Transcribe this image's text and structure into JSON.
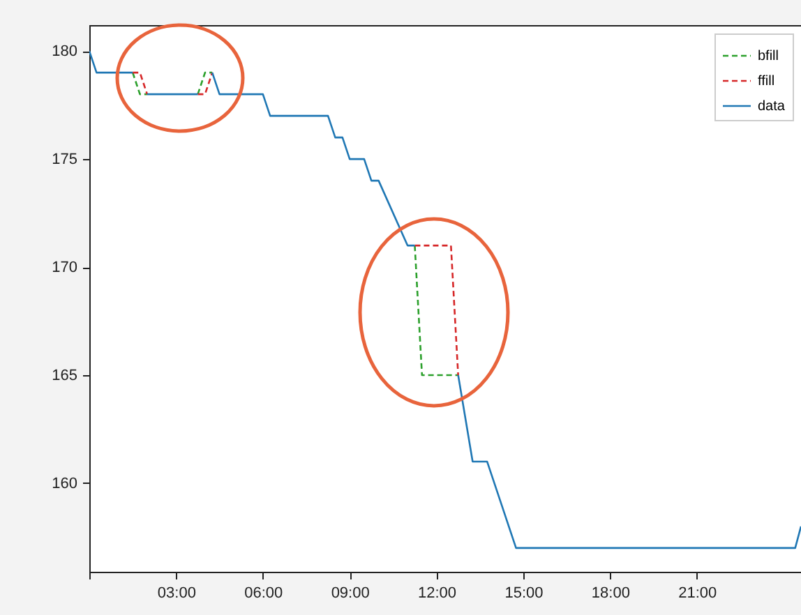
{
  "chart_data": {
    "type": "line",
    "xlim": [
      0,
      24.6
    ],
    "ylim": [
      155.9,
      181.2
    ],
    "xticks": [
      {
        "value": 0,
        "label": null
      },
      {
        "value": 3,
        "label": "03:00"
      },
      {
        "value": 6,
        "label": "06:00"
      },
      {
        "value": 9,
        "label": "09:00"
      },
      {
        "value": 12,
        "label": "12:00"
      },
      {
        "value": 15,
        "label": "15:00"
      },
      {
        "value": 18,
        "label": "18:00"
      },
      {
        "value": 21,
        "label": "21:00"
      }
    ],
    "yticks": [
      160,
      165,
      170,
      175,
      180
    ],
    "grid": false,
    "legend": "top right",
    "series": [
      {
        "name": "bfill",
        "color": "#2ca02c",
        "line_style": "dashed",
        "x": [
          1.5,
          1.75,
          2,
          3,
          3.75,
          4,
          4.25,
          8,
          11.25,
          11.5,
          12.5,
          12.75
        ],
        "values": [
          179,
          178,
          178,
          null,
          178,
          179,
          179,
          null,
          171,
          165,
          165,
          165
        ]
      },
      {
        "name": "ffill",
        "color": "#d62728",
        "line_style": "dashed",
        "x": [
          1.5,
          1.75,
          2,
          3,
          3.75,
          4,
          4.25,
          8,
          11.25,
          11.5,
          12.5,
          12.75
        ],
        "values": [
          179,
          179,
          178,
          null,
          178,
          178,
          179,
          null,
          171,
          171,
          171,
          165
        ]
      },
      {
        "name": "data",
        "color": "#1f77b4",
        "line_style": "solid",
        "x": [
          0,
          0.25,
          1.5,
          1.75,
          2,
          3.75,
          4,
          4.25,
          4.5,
          6,
          6.25,
          8.25,
          8.5,
          8.75,
          9,
          9.5,
          9.75,
          10,
          11,
          11.25,
          12,
          12.75,
          13.25,
          13.75,
          14.25,
          14.75,
          24.4,
          24.6
        ],
        "values": [
          180,
          179,
          179,
          null,
          178,
          178,
          null,
          179,
          178,
          178,
          177,
          177,
          176,
          176,
          175,
          175,
          174,
          174,
          171,
          171,
          null,
          165,
          161,
          161,
          159,
          157,
          157,
          158
        ]
      }
    ]
  }
}
